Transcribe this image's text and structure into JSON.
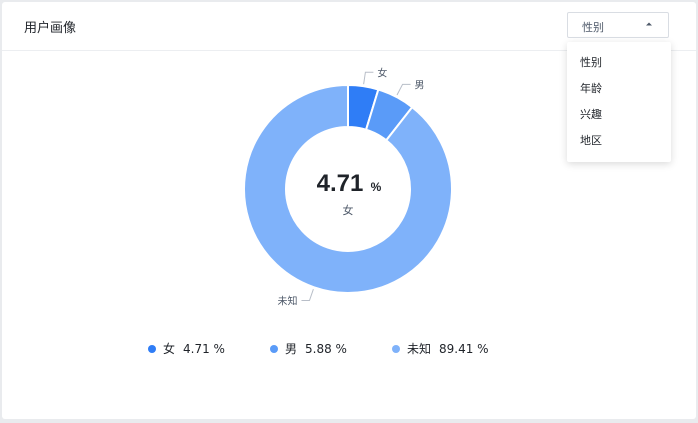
{
  "header": {
    "title": "用户画像"
  },
  "filter": {
    "selected": "性别",
    "options": [
      "性别",
      "年龄",
      "兴趣",
      "地区"
    ]
  },
  "center": {
    "value": "4.71",
    "unit": "%",
    "label": "女"
  },
  "colors": {
    "female": "#2f7df6",
    "male": "#5a9bf8",
    "unknown": "#7fb2fa"
  },
  "chart_data": {
    "type": "pie",
    "style": "donut",
    "title": "",
    "categories": [
      "女",
      "男",
      "未知"
    ],
    "values": [
      4.71,
      5.88,
      89.41
    ],
    "unit": "%",
    "legend_placement": "bottom"
  },
  "legend": [
    {
      "name": "女",
      "value": "4.71 %"
    },
    {
      "name": "男",
      "value": "5.88 %"
    },
    {
      "name": "未知",
      "value": "89.41 %"
    }
  ]
}
